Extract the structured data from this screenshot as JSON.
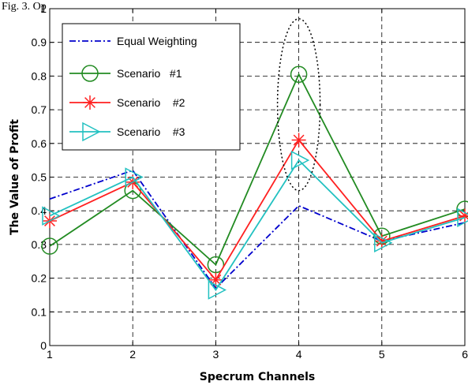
{
  "caption": "Fig. 3. Op",
  "chart_data": {
    "type": "line",
    "title": "",
    "xlabel": "Specrum  Channels",
    "ylabel": "The Value of Profit",
    "x": [
      1,
      2,
      3,
      4,
      5,
      6
    ],
    "xlim": [
      1,
      6
    ],
    "ylim": [
      0,
      1
    ],
    "xticks": [
      "1",
      "2",
      "3",
      "4",
      "5",
      "6"
    ],
    "yticks": [
      "0",
      "0.1",
      "0.2",
      "0.3",
      "0.4",
      "0.5",
      "0.6",
      "0.7",
      "0.8",
      "0.9",
      "1"
    ],
    "grid": true,
    "legend_position": "top-left",
    "series": [
      {
        "name": "Equal Weighting",
        "values": [
          0.435,
          0.52,
          0.17,
          0.415,
          0.31,
          0.365
        ],
        "color": "#0000cc",
        "dash": "dashdot",
        "marker": "none"
      },
      {
        "name": "Scenario   #1",
        "values": [
          0.295,
          0.46,
          0.24,
          0.805,
          0.325,
          0.405
        ],
        "color": "#228b22",
        "dash": "solid",
        "marker": "circle"
      },
      {
        "name": "Scenario    #2",
        "values": [
          0.37,
          0.485,
          0.195,
          0.61,
          0.31,
          0.385
        ],
        "color": "#ff2020",
        "dash": "solid",
        "marker": "asterisk"
      },
      {
        "name": "Scenario    #3",
        "values": [
          0.385,
          0.5,
          0.165,
          0.55,
          0.305,
          0.38
        ],
        "color": "#22c1c1",
        "dash": "solid",
        "marker": "triangle-right"
      }
    ],
    "annotations": [
      {
        "type": "dotted-ellipse",
        "x": 4,
        "y_range": [
          0.46,
          0.97
        ]
      }
    ]
  }
}
